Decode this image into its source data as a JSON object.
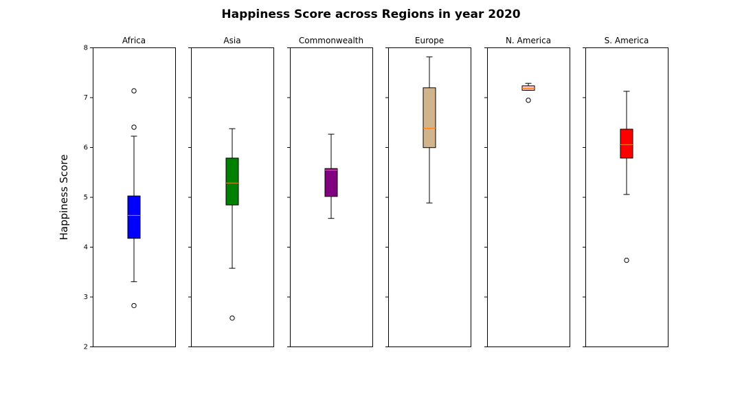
{
  "chart_data": {
    "type": "boxplot",
    "title": "Happiness Score across Regions in year 2020",
    "ylabel": "Happiness Score",
    "xlabel": "",
    "ylim": [
      2,
      8
    ],
    "yticks": [
      "2",
      "3",
      "4",
      "5",
      "6",
      "7",
      "8"
    ],
    "sharey": true,
    "grid": false,
    "median_color": "#ff7f0e",
    "panels": [
      {
        "title": "Africa",
        "color": "#0000ff",
        "whisker_low": 3.3,
        "q1": 4.17,
        "median": 4.63,
        "q3": 5.02,
        "whisker_high": 6.22,
        "outliers": [
          7.13,
          6.4,
          2.82
        ]
      },
      {
        "title": "Asia",
        "color": "#008000",
        "whisker_low": 3.57,
        "q1": 4.84,
        "median": 5.28,
        "q3": 5.78,
        "whisker_high": 6.37,
        "outliers": [
          2.57
        ]
      },
      {
        "title": "Commonwealth",
        "color": "#800080",
        "whisker_low": 4.57,
        "q1": 5.01,
        "median": 5.54,
        "q3": 5.57,
        "whisker_high": 6.26,
        "outliers": []
      },
      {
        "title": "Europe",
        "color": "#d2b48c",
        "whisker_low": 4.88,
        "q1": 5.99,
        "median": 6.38,
        "q3": 7.19,
        "whisker_high": 7.81,
        "outliers": []
      },
      {
        "title": "N. America",
        "color": "#ffc0cb",
        "whisker_low": 7.14,
        "q1": 7.14,
        "median": 7.18,
        "q3": 7.23,
        "whisker_high": 7.28,
        "outliers": [
          6.94
        ]
      },
      {
        "title": "S. America",
        "color": "#ff0000",
        "whisker_low": 5.05,
        "q1": 5.78,
        "median": 6.05,
        "q3": 6.36,
        "whisker_high": 7.12,
        "outliers": [
          3.73
        ]
      }
    ]
  }
}
